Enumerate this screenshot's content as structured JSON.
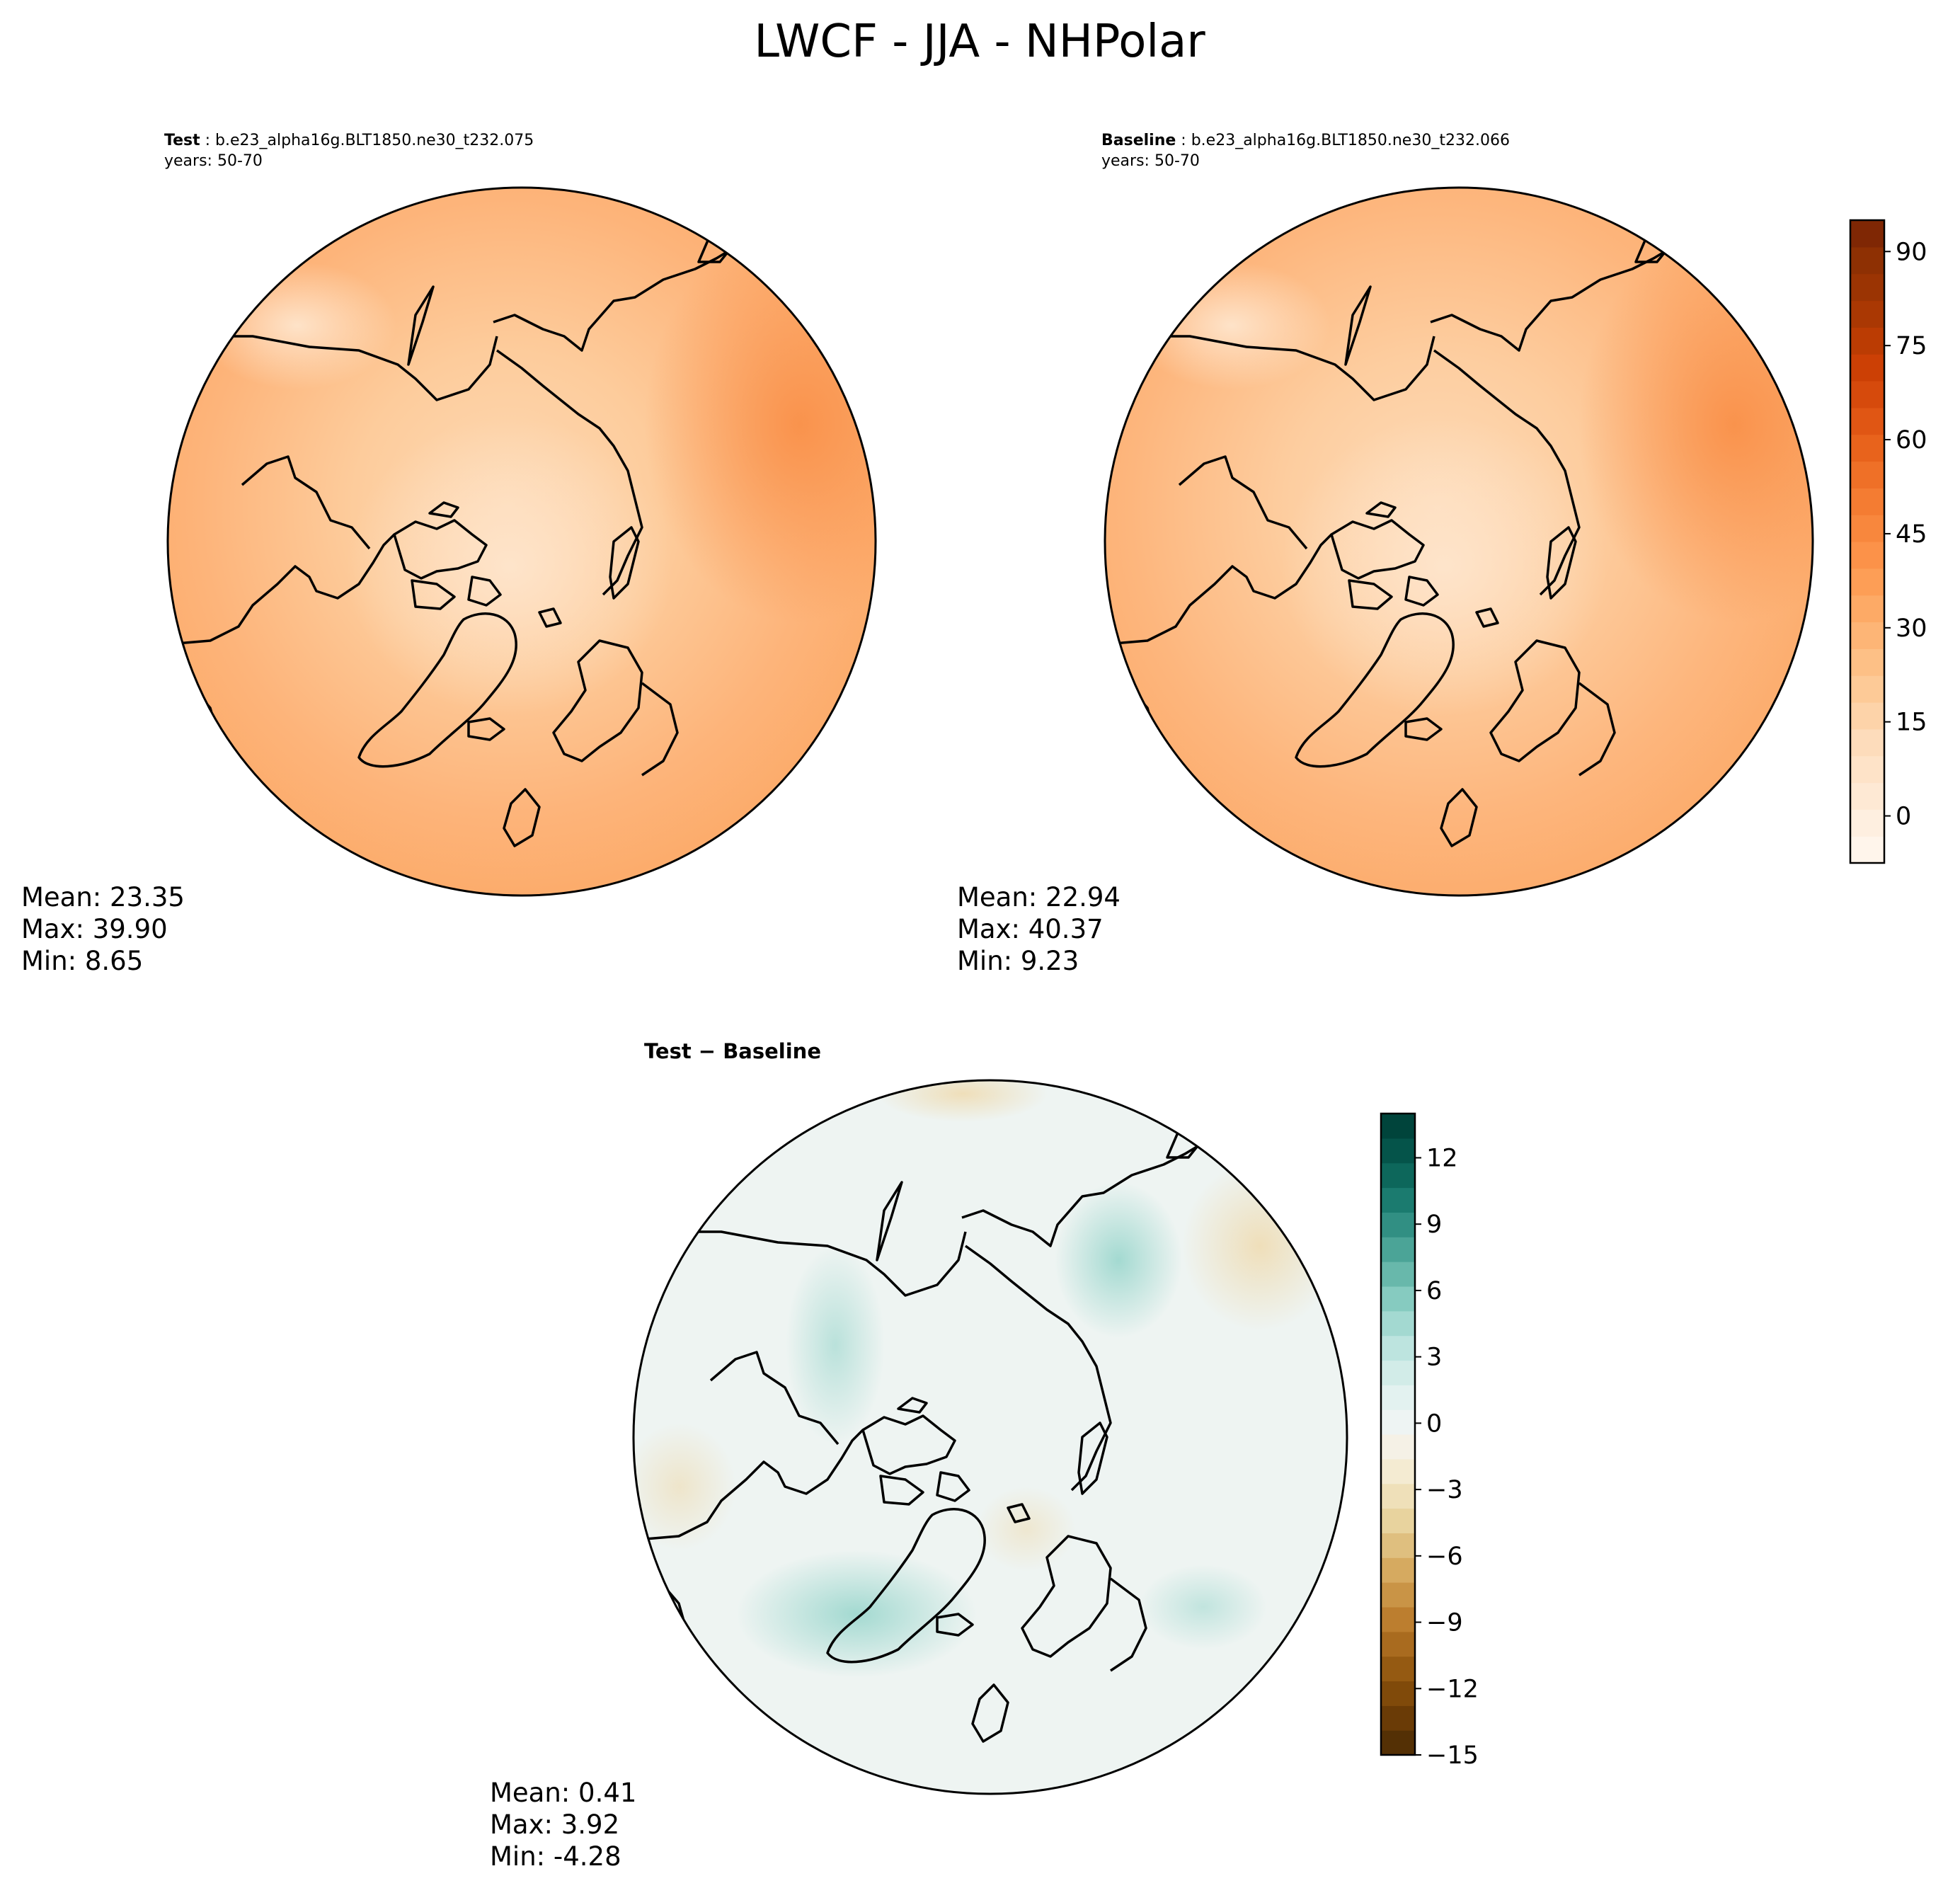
{
  "figure": {
    "title": "LWCF - JJA - NHPolar"
  },
  "panels": [
    {
      "id": "test",
      "case_label": "Test",
      "case_name": "b.e23_alpha16g.BLT1850.ne30_t232.075",
      "years": "years: 50-70",
      "stats": {
        "mean": "Mean: 23.35",
        "max": "Max: 39.90",
        "min": "Min:  8.65"
      }
    },
    {
      "id": "baseline",
      "case_label": "Baseline",
      "case_name": "b.e23_alpha16g.BLT1850.ne30_t232.066",
      "years": "years: 50-70",
      "stats": {
        "mean": "Mean: 22.94",
        "max": "Max: 40.37",
        "min": "Min:  9.23"
      }
    },
    {
      "id": "diff",
      "title": "Test − Baseline",
      "stats": {
        "mean": "Mean:  0.41",
        "max": "Max:  3.92",
        "min": "Min: -4.28"
      }
    }
  ],
  "colorbars": {
    "main": {
      "colormap": "Oranges",
      "vmin": -7.5,
      "vmax": 95,
      "ticks": [
        "0",
        "15",
        "30",
        "45",
        "60",
        "75",
        "90"
      ],
      "tick_values": [
        0,
        15,
        30,
        45,
        60,
        75,
        90
      ],
      "colors": [
        "#fff5eb",
        "#feefe0",
        "#fee9d4",
        "#fee3c8",
        "#fddcbb",
        "#fdd3a9",
        "#fdca97",
        "#fdc086",
        "#fdb576",
        "#fdaa66",
        "#fd9e56",
        "#fc9249",
        "#f8873d",
        "#f47c32",
        "#ef7027",
        "#e8631c",
        "#e05614",
        "#d64a0c",
        "#cc4005",
        "#bb3c03",
        "#aa3803",
        "#9b3403",
        "#8e3003",
        "#7f2704"
      ]
    },
    "diff": {
      "colormap": "BrBG",
      "vmin": -15,
      "vmax": 14,
      "ticks": [
        "−15",
        "−12",
        "−9",
        "−6",
        "−3",
        "0",
        "3",
        "6",
        "9",
        "12"
      ],
      "tick_values": [
        -15,
        -12,
        -9,
        -6,
        -3,
        0,
        3,
        6,
        9,
        12
      ],
      "colors": [
        "#543005",
        "#6a3b06",
        "#804a0a",
        "#955a12",
        "#a96b1f",
        "#bc7e2f",
        "#c99446",
        "#d6aa60",
        "#dfbf7f",
        "#e8d39e",
        "#efe0b9",
        "#f4ebd2",
        "#f5f1e6",
        "#eef4f3",
        "#e3f2f0",
        "#d2ece8",
        "#bde4df",
        "#a3d9d1",
        "#86cbc0",
        "#68b8ab",
        "#4ba497",
        "#318f83",
        "#1b7b6f",
        "#0d675b",
        "#05544a",
        "#00443b"
      ]
    }
  },
  "chart_data": [
    {
      "type": "heatmap",
      "title": "b.e23_alpha16g.BLT1850.ne30_t232.075",
      "variable": "LWCF",
      "projection": "NH polar stereographic",
      "summary": {
        "mean": 23.35,
        "max": 39.9,
        "min": 8.65
      },
      "value_range": [
        -7.5,
        95
      ],
      "colorbar_ticks": [
        0,
        15,
        30,
        45,
        60,
        75,
        90
      ]
    },
    {
      "type": "heatmap",
      "title": "b.e23_alpha16g.BLT1850.ne30_t232.066",
      "variable": "LWCF",
      "projection": "NH polar stereographic",
      "summary": {
        "mean": 22.94,
        "max": 40.37,
        "min": 9.23
      },
      "value_range": [
        -7.5,
        95
      ],
      "colorbar_ticks": [
        0,
        15,
        30,
        45,
        60,
        75,
        90
      ]
    },
    {
      "type": "heatmap",
      "title": "Test − Baseline",
      "variable": "LWCF",
      "projection": "NH polar stereographic",
      "summary": {
        "mean": 0.41,
        "max": 3.92,
        "min": -4.28
      },
      "value_range": [
        -15,
        14
      ],
      "colorbar_ticks": [
        -15,
        -12,
        -9,
        -6,
        -3,
        0,
        3,
        6,
        9,
        12
      ]
    }
  ]
}
